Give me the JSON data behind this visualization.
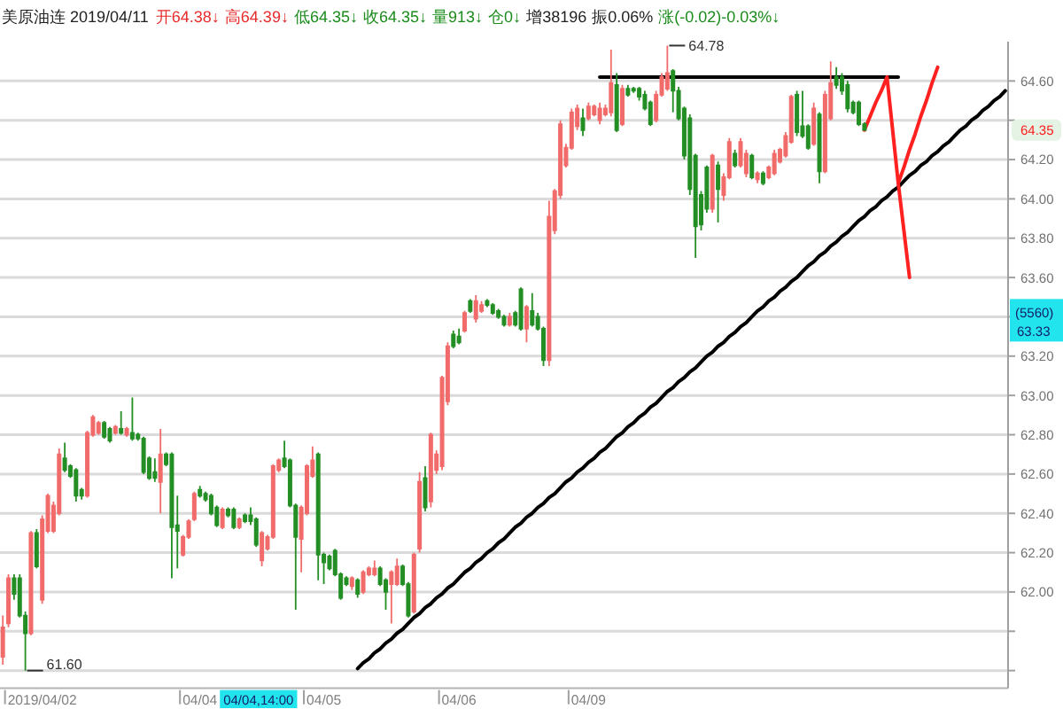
{
  "chart_data": {
    "type": "candlestick",
    "title": "美原油连 2019/04/11",
    "annotations": [
      "开64.38↓",
      "高64.39↓",
      "低64.35↓",
      "收64.35↓",
      "量913↓",
      "仓0↓",
      "增38196",
      "振0.06%",
      "涨(-0.02)-0.03%↓",
      "64.78",
      "61.60",
      {
        "text": "64.35",
        "y": 64.35
      },
      "(5560)",
      "63.33",
      "04/04,14:00"
    ],
    "categories": [
      null,
      null,
      null,
      null,
      null,
      null,
      null,
      "2019/04/02",
      null,
      null,
      null,
      null,
      null,
      null,
      null,
      null,
      null,
      null,
      null,
      null,
      null,
      null,
      null,
      null,
      null,
      null,
      null,
      null,
      null,
      null,
      null,
      null,
      null,
      null,
      null,
      "04/04",
      null,
      null,
      null,
      null,
      null,
      null,
      null,
      null,
      null,
      null,
      null,
      null,
      null,
      null,
      null,
      null,
      null,
      null,
      null,
      null,
      null,
      "04/05",
      null,
      null,
      null,
      null,
      null,
      null,
      null,
      null,
      null,
      null,
      null,
      null,
      null,
      null,
      null,
      null,
      null,
      null,
      null,
      null,
      null,
      null,
      null,
      "04/06",
      null,
      null,
      null,
      null,
      null,
      null,
      null,
      null,
      null,
      null,
      null,
      null,
      null,
      null,
      null,
      null,
      null,
      null,
      null,
      null,
      null,
      null,
      "04/09",
      null,
      null,
      null,
      null,
      null,
      null,
      null,
      null,
      null,
      null,
      null,
      null,
      null,
      null,
      null,
      null,
      null,
      null,
      null,
      null,
      null,
      null,
      null,
      null,
      null,
      null,
      null,
      null,
      null,
      null,
      null,
      null,
      null,
      null,
      null,
      null,
      null,
      null,
      null,
      null,
      null,
      null,
      null,
      null,
      null,
      null,
      null,
      null,
      null,
      null,
      null,
      null,
      null,
      null,
      null,
      null,
      null,
      null,
      null,
      null,
      null,
      null,
      null,
      null,
      null,
      null,
      null,
      null,
      null,
      null,
      null,
      null,
      null,
      null
    ],
    "ohlc": [
      [
        61.67,
        61.88,
        61.63,
        61.82
      ],
      [
        61.84,
        62.09,
        61.82,
        62.07
      ],
      [
        62.07,
        62.09,
        61.96,
        61.99
      ],
      [
        62.07,
        62.09,
        61.87,
        61.88
      ],
      [
        61.88,
        61.9,
        61.6,
        61.79
      ],
      [
        61.79,
        62.31,
        61.78,
        62.3
      ],
      [
        62.3,
        62.32,
        62.12,
        62.13
      ],
      [
        61.96,
        62.39,
        61.94,
        62.37
      ],
      [
        62.31,
        62.5,
        62.3,
        62.49
      ],
      [
        62.31,
        62.46,
        62.3,
        62.44
      ],
      [
        62.4,
        62.73,
        62.39,
        62.7
      ],
      [
        62.68,
        62.76,
        62.61,
        62.62
      ],
      [
        62.64,
        62.65,
        62.58,
        62.59
      ],
      [
        62.62,
        62.63,
        62.46,
        62.49
      ],
      [
        62.52,
        62.53,
        62.47,
        62.49
      ],
      [
        62.49,
        62.82,
        62.48,
        62.81
      ],
      [
        62.8,
        62.9,
        62.79,
        62.89
      ],
      [
        62.81,
        62.87,
        62.8,
        62.86
      ],
      [
        62.86,
        62.87,
        62.78,
        62.79
      ],
      [
        62.83,
        62.84,
        62.76,
        62.77
      ],
      [
        62.81,
        62.85,
        62.8,
        62.84
      ],
      [
        62.83,
        62.92,
        62.8,
        62.81
      ],
      [
        62.8,
        62.84,
        62.79,
        62.83
      ],
      [
        62.81,
        62.99,
        62.77,
        62.78
      ],
      [
        62.8,
        62.81,
        62.77,
        62.78
      ],
      [
        62.78,
        62.79,
        62.6,
        62.61
      ],
      [
        62.68,
        62.69,
        62.57,
        62.58
      ],
      [
        62.61,
        62.68,
        62.56,
        62.58
      ],
      [
        62.56,
        62.83,
        62.4,
        62.7
      ],
      [
        62.7,
        62.71,
        62.64,
        62.65
      ],
      [
        62.7,
        62.71,
        62.07,
        62.33
      ],
      [
        62.34,
        62.49,
        62.12,
        62.31
      ],
      [
        62.19,
        62.29,
        62.18,
        62.28
      ],
      [
        62.28,
        62.37,
        62.27,
        62.36
      ],
      [
        62.37,
        62.51,
        62.36,
        62.5
      ],
      [
        62.52,
        62.54,
        62.48,
        62.49
      ],
      [
        62.5,
        62.51,
        62.46,
        62.47
      ],
      [
        62.49,
        62.5,
        62.39,
        62.4
      ],
      [
        62.43,
        62.44,
        62.33,
        62.34
      ],
      [
        62.33,
        62.43,
        62.32,
        62.42
      ],
      [
        62.42,
        62.43,
        62.38,
        62.39
      ],
      [
        62.42,
        62.43,
        62.32,
        62.33
      ],
      [
        62.33,
        62.38,
        62.32,
        62.37
      ],
      [
        62.39,
        62.4,
        62.35,
        62.36
      ],
      [
        62.39,
        62.43,
        62.34,
        62.36
      ],
      [
        62.37,
        62.38,
        62.23,
        62.24
      ],
      [
        62.16,
        62.31,
        62.13,
        62.3
      ],
      [
        62.22,
        62.29,
        62.21,
        62.28
      ],
      [
        62.28,
        62.65,
        62.27,
        62.64
      ],
      [
        62.62,
        62.68,
        62.61,
        62.67
      ],
      [
        62.68,
        62.77,
        62.63,
        62.64
      ],
      [
        62.67,
        62.68,
        62.43,
        62.44
      ],
      [
        62.44,
        62.45,
        61.91,
        62.28
      ],
      [
        62.27,
        62.44,
        62.1,
        62.43
      ],
      [
        62.4,
        62.65,
        62.39,
        62.64
      ],
      [
        62.59,
        62.74,
        62.58,
        62.67
      ],
      [
        62.7,
        62.71,
        62.06,
        62.19
      ],
      [
        62.19,
        62.2,
        62.04,
        62.15
      ],
      [
        62.18,
        62.19,
        62.11,
        62.12
      ],
      [
        62.21,
        62.22,
        62.08,
        62.09
      ],
      [
        62.09,
        62.1,
        61.96,
        61.97
      ],
      [
        62.07,
        62.08,
        62.03,
        62.04
      ],
      [
        62.03,
        62.08,
        62.01,
        62.07
      ],
      [
        62.06,
        62.07,
        61.97,
        61.99
      ],
      [
        62.0,
        62.11,
        61.99,
        62.1
      ],
      [
        62.09,
        62.13,
        62.08,
        62.12
      ],
      [
        62.09,
        62.16,
        62.08,
        62.12
      ],
      [
        62.12,
        62.13,
        62.03,
        62.04
      ],
      [
        62.06,
        62.07,
        61.91,
        62.0
      ],
      [
        62.04,
        62.11,
        61.84,
        62.1
      ],
      [
        62.04,
        62.17,
        62.03,
        62.13
      ],
      [
        62.13,
        62.14,
        62.03,
        62.04
      ],
      [
        62.04,
        62.05,
        61.87,
        61.88
      ],
      [
        61.9,
        62.2,
        61.89,
        62.19
      ],
      [
        62.22,
        62.61,
        62.2,
        62.56
      ],
      [
        62.58,
        62.64,
        62.41,
        62.43
      ],
      [
        62.46,
        62.81,
        62.43,
        62.8
      ],
      [
        62.62,
        62.72,
        62.6,
        62.7
      ],
      [
        62.64,
        63.1,
        62.62,
        63.09
      ],
      [
        62.97,
        63.27,
        62.95,
        63.25
      ],
      [
        63.31,
        63.33,
        63.24,
        63.25
      ],
      [
        63.3,
        63.34,
        63.26,
        63.27
      ],
      [
        63.33,
        63.43,
        63.32,
        63.42
      ],
      [
        63.48,
        63.49,
        63.42,
        63.43
      ],
      [
        63.39,
        63.51,
        63.37,
        63.48
      ],
      [
        63.43,
        63.48,
        63.42,
        63.46
      ],
      [
        63.48,
        63.49,
        63.45,
        63.46
      ],
      [
        63.46,
        63.47,
        63.41,
        63.42
      ],
      [
        63.43,
        63.44,
        63.39,
        63.4
      ],
      [
        63.4,
        63.41,
        63.35,
        63.36
      ],
      [
        63.36,
        63.42,
        63.35,
        63.4
      ],
      [
        63.42,
        63.43,
        63.35,
        63.36
      ],
      [
        63.54,
        63.55,
        63.33,
        63.34
      ],
      [
        63.34,
        63.46,
        63.27,
        63.45
      ],
      [
        63.43,
        63.52,
        63.35,
        63.36
      ],
      [
        63.4,
        63.42,
        63.33,
        63.34
      ],
      [
        63.34,
        63.35,
        63.15,
        63.18
      ],
      [
        63.18,
        63.99,
        63.15,
        63.91
      ],
      [
        63.84,
        64.05,
        63.82,
        64.04
      ],
      [
        64.02,
        64.4,
        64.0,
        64.38
      ],
      [
        64.17,
        64.28,
        64.16,
        64.26
      ],
      [
        64.26,
        64.46,
        64.25,
        64.44
      ],
      [
        64.37,
        64.48,
        64.35,
        64.46
      ],
      [
        64.41,
        64.46,
        64.32,
        64.35
      ],
      [
        64.41,
        64.49,
        64.4,
        64.47
      ],
      [
        64.43,
        64.48,
        64.42,
        64.47
      ],
      [
        64.4,
        64.49,
        64.38,
        64.46
      ],
      [
        64.43,
        64.48,
        64.42,
        64.46
      ],
      [
        64.44,
        64.76,
        64.42,
        64.59
      ],
      [
        64.58,
        64.64,
        64.34,
        64.35
      ],
      [
        64.38,
        64.58,
        64.37,
        64.56
      ],
      [
        64.56,
        64.58,
        64.52,
        64.53
      ],
      [
        64.56,
        64.57,
        64.54,
        64.55
      ],
      [
        64.56,
        64.57,
        64.5,
        64.52
      ],
      [
        64.53,
        64.55,
        64.45,
        64.46
      ],
      [
        64.49,
        64.5,
        64.37,
        64.38
      ],
      [
        64.4,
        64.55,
        64.39,
        64.53
      ],
      [
        64.53,
        64.64,
        64.52,
        64.62
      ],
      [
        64.56,
        64.78,
        64.55,
        64.64
      ],
      [
        64.65,
        64.66,
        64.44,
        64.55
      ],
      [
        64.55,
        64.57,
        64.4,
        64.41
      ],
      [
        64.46,
        64.47,
        64.2,
        64.22
      ],
      [
        64.41,
        64.43,
        64.02,
        64.05
      ],
      [
        64.22,
        64.23,
        63.7,
        63.86
      ],
      [
        64.02,
        64.04,
        63.84,
        63.87
      ],
      [
        64.16,
        64.17,
        63.93,
        63.95
      ],
      [
        63.95,
        64.23,
        63.93,
        64.22
      ],
      [
        64.17,
        64.19,
        63.88,
        64.05
      ],
      [
        64.02,
        64.13,
        63.99,
        64.11
      ],
      [
        64.11,
        64.31,
        64.1,
        64.29
      ],
      [
        64.23,
        64.25,
        64.16,
        64.17
      ],
      [
        64.17,
        64.31,
        64.16,
        64.29
      ],
      [
        64.13,
        64.25,
        64.11,
        64.23
      ],
      [
        64.22,
        64.23,
        64.1,
        64.11
      ],
      [
        64.1,
        64.14,
        64.08,
        64.13
      ],
      [
        64.13,
        64.14,
        64.07,
        64.08
      ],
      [
        64.11,
        64.17,
        64.1,
        64.16
      ],
      [
        64.13,
        64.25,
        64.12,
        64.23
      ],
      [
        64.19,
        64.26,
        64.18,
        64.25
      ],
      [
        64.22,
        64.34,
        64.21,
        64.32
      ],
      [
        64.29,
        64.53,
        64.28,
        64.52
      ],
      [
        64.53,
        64.55,
        64.32,
        64.34
      ],
      [
        64.37,
        64.55,
        64.31,
        64.32
      ],
      [
        64.37,
        64.38,
        64.25,
        64.26
      ],
      [
        64.28,
        64.49,
        64.27,
        64.46
      ],
      [
        64.43,
        64.44,
        64.08,
        64.14
      ],
      [
        64.14,
        64.55,
        64.13,
        64.53
      ],
      [
        64.41,
        64.7,
        64.4,
        64.59
      ],
      [
        64.62,
        64.67,
        64.56,
        64.58
      ],
      [
        64.62,
        64.64,
        64.53,
        64.55
      ],
      [
        64.58,
        64.6,
        64.44,
        64.46
      ],
      [
        64.49,
        64.5,
        64.43,
        64.44
      ],
      [
        64.49,
        64.5,
        64.37,
        64.38
      ],
      [
        64.38,
        64.39,
        64.35,
        64.35
      ],
      null,
      null,
      null,
      null,
      null,
      null,
      null,
      null,
      null,
      null,
      null,
      null,
      null,
      null,
      null,
      null,
      null,
      null,
      null,
      null,
      null,
      null,
      null,
      null,
      null
    ],
    "colors": [
      "#f26b6b",
      "#f26b6b",
      "#238e23",
      "#238e23",
      "#238e23",
      "#f26b6b",
      "#238e23",
      "#f26b6b",
      "#f26b6b",
      "#f26b6b",
      "#f26b6b",
      "#238e23",
      "#238e23",
      "#238e23",
      "#238e23",
      "#f26b6b",
      "#f26b6b",
      "#f26b6b",
      "#238e23",
      "#238e23",
      "#f26b6b",
      "#238e23",
      "#f26b6b",
      "#238e23",
      "#238e23",
      "#238e23",
      "#238e23",
      "#238e23",
      "#f26b6b",
      "#238e23",
      "#238e23",
      "#238e23",
      "#f26b6b",
      "#f26b6b",
      "#f26b6b",
      "#238e23",
      "#238e23",
      "#238e23",
      "#238e23",
      "#f26b6b",
      "#238e23",
      "#238e23",
      "#f26b6b",
      "#238e23",
      "#238e23",
      "#238e23",
      "#f26b6b",
      "#f26b6b",
      "#f26b6b",
      "#f26b6b",
      "#238e23",
      "#238e23",
      "#238e23",
      "#f26b6b",
      "#f26b6b",
      "#f26b6b",
      "#238e23",
      "#238e23",
      "#238e23",
      "#238e23",
      "#238e23",
      "#238e23",
      "#f26b6b",
      "#238e23",
      "#f26b6b",
      "#f26b6b",
      "#f26b6b",
      "#238e23",
      "#238e23",
      "#f26b6b",
      "#f26b6b",
      "#238e23",
      "#238e23",
      "#f26b6b",
      "#f26b6b",
      "#238e23",
      "#f26b6b",
      "#f26b6b",
      "#f26b6b",
      "#f26b6b",
      "#238e23",
      "#238e23",
      "#f26b6b",
      "#238e23",
      "#f26b6b",
      "#f26b6b",
      "#238e23",
      "#238e23",
      "#238e23",
      "#238e23",
      "#f26b6b",
      "#238e23",
      "#238e23",
      "#f26b6b",
      "#238e23",
      "#238e23",
      "#238e23",
      "#f26b6b",
      "#f26b6b",
      "#f26b6b",
      "#f26b6b",
      "#f26b6b",
      "#f26b6b",
      "#238e23",
      "#f26b6b",
      "#f26b6b",
      "#f26b6b",
      "#f26b6b",
      "#f26b6b",
      "#238e23",
      "#f26b6b",
      "#238e23",
      "#238e23",
      "#238e23",
      "#238e23",
      "#238e23",
      "#f26b6b",
      "#f26b6b",
      "#f26b6b",
      "#238e23",
      "#238e23",
      "#238e23",
      "#238e23",
      "#238e23",
      "#238e23",
      "#238e23",
      "#f26b6b",
      "#238e23",
      "#f26b6b",
      "#f26b6b",
      "#238e23",
      "#f26b6b",
      "#f26b6b",
      "#238e23",
      "#f26b6b",
      "#238e23",
      "#f26b6b",
      "#f26b6b",
      "#f26b6b",
      "#f26b6b",
      "#f26b6b",
      "#238e23",
      "#238e23",
      "#238e23",
      "#f26b6b",
      "#238e23",
      "#f26b6b",
      "#f26b6b",
      "#238e23",
      "#238e23",
      "#238e23",
      "#238e23",
      "#238e23",
      "#238e23",
      null,
      null,
      null,
      null,
      null,
      null,
      null,
      null,
      null,
      null,
      null,
      null,
      null,
      null,
      null,
      null,
      null,
      null,
      null,
      null,
      null,
      null,
      null,
      null,
      null
    ],
    "series": [
      {
        "type": "line",
        "color": "#000000",
        "values": [
          null,
          null,
          null,
          null,
          null,
          null,
          null,
          null,
          null,
          null,
          null,
          null,
          null,
          null,
          null,
          null,
          null,
          null,
          null,
          null,
          null,
          null,
          null,
          null,
          null,
          null,
          null,
          null,
          null,
          null,
          null,
          null,
          null,
          null,
          null,
          null,
          null,
          null,
          null,
          null,
          null,
          null,
          null,
          null,
          null,
          null,
          null,
          null,
          null,
          null,
          null,
          null,
          null,
          null,
          null,
          null,
          null,
          null,
          null,
          null,
          null,
          null,
          null,
          null,
          null,
          null,
          null,
          null,
          null,
          null,
          null,
          null,
          null,
          null,
          null,
          null,
          null,
          null,
          null,
          null,
          null,
          null,
          null,
          null,
          null,
          null,
          null,
          null,
          null,
          null,
          null,
          null,
          null,
          null,
          null,
          null,
          null,
          null,
          null,
          null,
          null,
          null,
          null,
          null,
          null,
          null,
          64.62,
          64.62,
          64.62,
          64.62,
          64.62,
          64.62,
          64.62,
          64.62,
          64.62,
          64.62,
          64.62,
          64.62,
          64.62,
          64.62,
          64.62,
          64.62,
          64.62,
          64.62,
          64.62,
          64.62,
          64.62,
          64.62,
          64.62,
          64.62,
          64.62,
          64.62,
          64.62,
          64.62,
          64.62,
          64.62,
          64.62,
          64.62,
          64.62,
          64.62,
          64.62,
          64.62,
          64.62,
          64.62,
          64.62,
          64.62,
          64.62,
          64.62,
          64.62,
          64.62,
          64.62,
          64.62,
          64.62,
          64.62,
          64.62,
          64.62,
          64.62,
          64.62,
          64.62,
          64.62,
          null,
          null,
          null,
          null,
          null,
          null,
          null,
          null,
          null,
          null,
          null,
          null,
          null,
          null,
          null,
          null,
          null,
          null,
          null
        ]
      },
      {
        "type": "line",
        "color": "#000000",
        "values": [
          null,
          null,
          null,
          null,
          null,
          null,
          null,
          null,
          null,
          null,
          null,
          null,
          null,
          null,
          null,
          null,
          null,
          null,
          null,
          null,
          null,
          null,
          null,
          null,
          null,
          null,
          null,
          null,
          null,
          null,
          null,
          null,
          null,
          null,
          null,
          null,
          null,
          null,
          null,
          null,
          null,
          null,
          null,
          null,
          null,
          null,
          null,
          null,
          null,
          null,
          null,
          null,
          null,
          null,
          null,
          null,
          null,
          null,
          null,
          null,
          null,
          null,
          null,
          61.61,
          61.64,
          61.66,
          61.69,
          61.71,
          61.74,
          61.76,
          61.79,
          61.81,
          61.84,
          61.87,
          61.89,
          61.92,
          61.94,
          61.97,
          61.99,
          62.02,
          62.04,
          62.07,
          62.1,
          62.12,
          62.15,
          62.17,
          62.2,
          62.22,
          62.25,
          62.27,
          62.3,
          62.33,
          62.35,
          62.38,
          62.4,
          62.43,
          62.45,
          62.48,
          62.5,
          62.53,
          62.56,
          62.58,
          62.61,
          62.63,
          62.66,
          62.68,
          62.71,
          62.73,
          62.76,
          62.79,
          62.81,
          62.84,
          62.86,
          62.89,
          62.91,
          62.94,
          62.96,
          62.99,
          63.02,
          63.04,
          63.07,
          63.09,
          63.12,
          63.14,
          63.17,
          63.2,
          63.22,
          63.25,
          63.27,
          63.3,
          63.32,
          63.35,
          63.37,
          63.4,
          63.43,
          63.45,
          63.48,
          63.5,
          63.53,
          63.55,
          63.58,
          63.6,
          63.63,
          63.66,
          63.68,
          63.71,
          63.73,
          63.76,
          63.78,
          63.81,
          63.83,
          63.86,
          63.89,
          63.91,
          63.94,
          63.96,
          63.99,
          64.01,
          64.04,
          64.06,
          64.09,
          64.12,
          64.14,
          64.17,
          64.19,
          64.22,
          64.24,
          64.27,
          64.29,
          64.32,
          64.35,
          64.37,
          64.4,
          64.42,
          64.45,
          64.47,
          64.5,
          64.52,
          64.55
        ]
      },
      {
        "type": "line",
        "color": "#ff2020",
        "values": [
          null,
          null,
          null,
          null,
          null,
          null,
          null,
          null,
          null,
          null,
          null,
          null,
          null,
          null,
          null,
          null,
          null,
          null,
          null,
          null,
          null,
          null,
          null,
          null,
          null,
          null,
          null,
          null,
          null,
          null,
          null,
          null,
          null,
          null,
          null,
          null,
          null,
          null,
          null,
          null,
          null,
          null,
          null,
          null,
          null,
          null,
          null,
          null,
          null,
          null,
          null,
          null,
          null,
          null,
          null,
          null,
          null,
          null,
          null,
          null,
          null,
          null,
          null,
          null,
          null,
          null,
          null,
          null,
          null,
          null,
          null,
          null,
          null,
          null,
          null,
          null,
          null,
          null,
          null,
          null,
          null,
          null,
          null,
          null,
          null,
          null,
          null,
          null,
          null,
          null,
          null,
          null,
          null,
          null,
          null,
          null,
          null,
          null,
          null,
          null,
          null,
          null,
          null,
          null,
          null,
          null,
          null,
          null,
          null,
          null,
          null,
          null,
          null,
          null,
          null,
          null,
          null,
          null,
          null,
          null,
          null,
          null,
          null,
          null,
          null,
          null,
          null,
          null,
          null,
          null,
          null,
          null,
          null,
          null,
          null,
          null,
          null,
          null,
          null,
          null,
          null,
          null,
          null,
          null,
          null,
          null,
          null,
          null,
          null,
          null,
          null,
          null,
          null,
          64.35,
          64.42,
          64.49,
          64.55,
          64.62,
          64.35,
          64.08,
          64.16,
          64.25,
          64.33,
          64.42,
          64.5,
          64.59,
          64.67,
          null,
          null,
          null,
          null,
          null,
          null,
          null,
          null,
          null,
          null,
          null,
          null
        ]
      },
      {
        "type": "line",
        "color": "#ff2020",
        "values": [
          null,
          null,
          null,
          null,
          null,
          null,
          null,
          null,
          null,
          null,
          null,
          null,
          null,
          null,
          null,
          null,
          null,
          null,
          null,
          null,
          null,
          null,
          null,
          null,
          null,
          null,
          null,
          null,
          null,
          null,
          null,
          null,
          null,
          null,
          null,
          null,
          null,
          null,
          null,
          null,
          null,
          null,
          null,
          null,
          null,
          null,
          null,
          null,
          null,
          null,
          null,
          null,
          null,
          null,
          null,
          null,
          null,
          null,
          null,
          null,
          null,
          null,
          null,
          null,
          null,
          null,
          null,
          null,
          null,
          null,
          null,
          null,
          null,
          null,
          null,
          null,
          null,
          null,
          null,
          null,
          null,
          null,
          null,
          null,
          null,
          null,
          null,
          null,
          null,
          null,
          null,
          null,
          null,
          null,
          null,
          null,
          null,
          null,
          null,
          null,
          null,
          null,
          null,
          null,
          null,
          null,
          null,
          null,
          null,
          null,
          null,
          null,
          null,
          null,
          null,
          null,
          null,
          null,
          null,
          null,
          null,
          null,
          null,
          null,
          null,
          null,
          null,
          null,
          null,
          null,
          null,
          null,
          null,
          null,
          null,
          null,
          null,
          null,
          null,
          null,
          null,
          null,
          null,
          null,
          null,
          null,
          null,
          null,
          null,
          null,
          null,
          null,
          null,
          null,
          null,
          null,
          null,
          null,
          null,
          64.08,
          63.84,
          63.6,
          null,
          null,
          null,
          null,
          null,
          null,
          null,
          null,
          null,
          null,
          null,
          null,
          null,
          null,
          null,
          null,
          null
        ]
      }
    ],
    "ylim": [
      61.51,
      64.8
    ],
    "yticks": [
      {
        "value": 61.6,
        "label": null
      },
      {
        "value": 61.8,
        "label": null
      },
      {
        "value": 62,
        "label": "62.00"
      },
      {
        "value": 62.2,
        "label": "62.20"
      },
      {
        "value": 62.4,
        "label": "62.40"
      },
      {
        "value": 62.6,
        "label": "62.60"
      },
      {
        "value": 62.8,
        "label": "62.80"
      },
      {
        "value": 63,
        "label": "63.00"
      },
      {
        "value": 63.2,
        "label": "63.20"
      },
      {
        "value": 63.4,
        "label": null
      },
      {
        "value": 63.6,
        "label": "63.60"
      },
      {
        "value": 63.8,
        "label": "63.80"
      },
      {
        "value": 64,
        "label": "64.00"
      },
      {
        "value": 64.2,
        "label": "64.20"
      },
      {
        "value": 64.4,
        "label": null
      },
      {
        "value": 64.6,
        "label": "64.60"
      }
    ],
    "grid": "y"
  }
}
